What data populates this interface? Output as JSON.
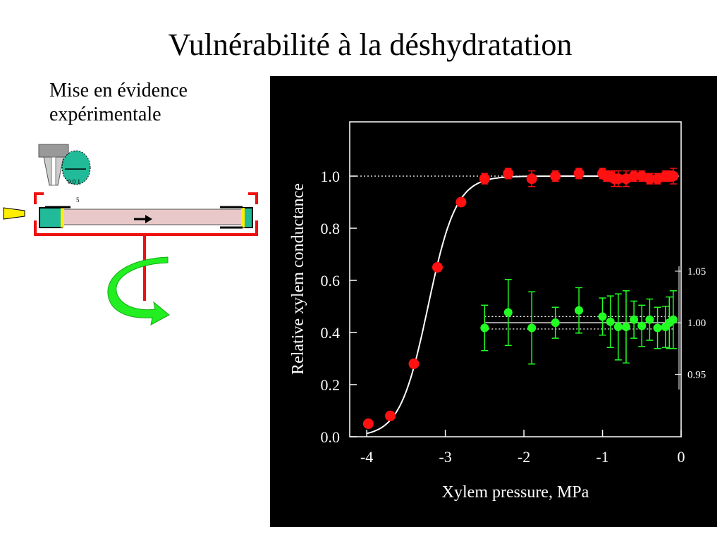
{
  "slide": {
    "title": "Vulnérabilité à la déshydratation",
    "subtitle_lines": [
      "Mise en évidence",
      "expérimentale"
    ]
  },
  "apparatus": {
    "gauge_label": "0  0  1",
    "gauge_sub": "5",
    "colors": {
      "frame": "#ee1111",
      "arrow": "#22ee22",
      "gauge": "#22bb99",
      "stem": "#e8c8c8"
    },
    "icons": [
      "pressure-chamber-icon",
      "rotation-arrow-icon",
      "flow-arrow-icon",
      "light-source-icon",
      "gauge-icon"
    ]
  },
  "chart_data": {
    "type": "scatter",
    "xlabel": "Xylem pressure, MPa",
    "ylabel": "Relative xylem conductance",
    "xlim": [
      -4.1,
      0
    ],
    "ylim": [
      0,
      1.1
    ],
    "x_ticks": [
      "-4",
      "-3",
      "-2",
      "-1",
      "0"
    ],
    "y_ticks": [
      "0.0",
      "0.2",
      "0.4",
      "0.6",
      "0.8",
      "1.0"
    ],
    "right_axis": {
      "ticks": [
        "1.05",
        "1.00",
        "0.95"
      ],
      "range": [
        0.925,
        1.065
      ]
    },
    "background": "#000000",
    "grid": false,
    "reference_line": {
      "y": 1.0,
      "style": "dotted"
    },
    "fit_curve": {
      "color": "#ffffff",
      "shape": "sigmoid"
    },
    "series": [
      {
        "color": "#ff1111",
        "axis": "left",
        "x": [
          -3.98,
          -3.7,
          -3.4,
          -3.1,
          -2.8,
          -2.5,
          -2.2,
          -1.9,
          -1.6,
          -1.3,
          -1.0,
          -0.95,
          -0.9,
          -0.85,
          -0.8,
          -0.7,
          -0.6,
          -0.5,
          -0.4,
          -0.3,
          -0.2,
          -0.15,
          -0.1
        ],
        "y": [
          0.05,
          0.08,
          0.28,
          0.65,
          0.9,
          0.99,
          1.01,
          0.99,
          1.0,
          1.01,
          1.01,
          1.0,
          1.0,
          0.99,
          0.99,
          0.99,
          1.0,
          1.0,
          0.99,
          0.99,
          1.0,
          1.0,
          1.0
        ],
        "err": [
          0,
          0,
          0,
          0,
          0,
          0.02,
          0.02,
          0.03,
          0.02,
          0.02,
          0.02,
          0.02,
          0.02,
          0.03,
          0.03,
          0.03,
          0.02,
          0.02,
          0.02,
          0.02,
          0.02,
          0.02,
          0.03
        ]
      },
      {
        "color": "#22ff22",
        "axis": "right",
        "x": [
          -2.5,
          -2.2,
          -1.9,
          -1.6,
          -1.3,
          -1.0,
          -0.9,
          -0.8,
          -0.7,
          -0.6,
          -0.5,
          -0.4,
          -0.3,
          -0.2,
          -0.15,
          -0.1
        ],
        "y": [
          0.995,
          1.01,
          0.995,
          1.0,
          1.012,
          1.006,
          1.001,
          0.996,
          0.996,
          1.003,
          0.997,
          1.003,
          0.995,
          0.996,
          1.0,
          1.003
        ],
        "err": [
          0.022,
          0.032,
          0.035,
          0.015,
          0.022,
          0.018,
          0.025,
          0.032,
          0.035,
          0.018,
          0.02,
          0.02,
          0.02,
          0.02,
          0.025,
          0.028
        ]
      }
    ],
    "right_reference_lines": [
      {
        "y": 1.0,
        "style": "solid"
      },
      {
        "y": 1.006,
        "style": "dotted"
      },
      {
        "y": 0.994,
        "style": "dotted"
      }
    ]
  }
}
